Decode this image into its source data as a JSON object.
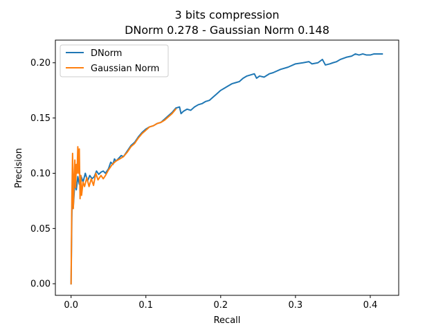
{
  "chart_data": {
    "type": "line",
    "title": [
      "3 bits compression",
      "DNorm 0.278 - Gaussian Norm 0.148"
    ],
    "xlabel": "Recall",
    "ylabel": "Precision",
    "xlim": [
      -0.021,
      0.438
    ],
    "ylim": [
      -0.0105,
      0.2205
    ],
    "x_ticks": [
      0.0,
      0.1,
      0.2,
      0.3,
      0.4
    ],
    "x_tick_labels": [
      "0.0",
      "0.1",
      "0.2",
      "0.3",
      "0.4"
    ],
    "y_ticks": [
      0.0,
      0.05,
      0.1,
      0.15,
      0.2
    ],
    "y_tick_labels": [
      "0.00",
      "0.05",
      "0.10",
      "0.15",
      "0.20"
    ],
    "grid": false,
    "legend_position": "top-left",
    "series": [
      {
        "name": "DNorm",
        "color": "#1f77b4",
        "points": [
          [
            0.0,
            0.0
          ],
          [
            0.001,
            0.06
          ],
          [
            0.002,
            0.1
          ],
          [
            0.003,
            0.07
          ],
          [
            0.005,
            0.092
          ],
          [
            0.007,
            0.085
          ],
          [
            0.009,
            0.097
          ],
          [
            0.011,
            0.09
          ],
          [
            0.013,
            0.098
          ],
          [
            0.016,
            0.092
          ],
          [
            0.019,
            0.1
          ],
          [
            0.022,
            0.093
          ],
          [
            0.025,
            0.098
          ],
          [
            0.028,
            0.095
          ],
          [
            0.031,
            0.097
          ],
          [
            0.034,
            0.102
          ],
          [
            0.037,
            0.099
          ],
          [
            0.04,
            0.101
          ],
          [
            0.043,
            0.102
          ],
          [
            0.046,
            0.1
          ],
          [
            0.05,
            0.104
          ],
          [
            0.053,
            0.11
          ],
          [
            0.056,
            0.108
          ],
          [
            0.058,
            0.113
          ],
          [
            0.06,
            0.111
          ],
          [
            0.063,
            0.113
          ],
          [
            0.067,
            0.116
          ],
          [
            0.07,
            0.115
          ],
          [
            0.075,
            0.12
          ],
          [
            0.08,
            0.125
          ],
          [
            0.085,
            0.128
          ],
          [
            0.09,
            0.133
          ],
          [
            0.095,
            0.137
          ],
          [
            0.1,
            0.14
          ],
          [
            0.105,
            0.142
          ],
          [
            0.11,
            0.143
          ],
          [
            0.115,
            0.145
          ],
          [
            0.12,
            0.146
          ],
          [
            0.125,
            0.149
          ],
          [
            0.13,
            0.152
          ],
          [
            0.135,
            0.155
          ],
          [
            0.14,
            0.159
          ],
          [
            0.145,
            0.16
          ],
          [
            0.147,
            0.154
          ],
          [
            0.15,
            0.156
          ],
          [
            0.155,
            0.158
          ],
          [
            0.16,
            0.157
          ],
          [
            0.165,
            0.16
          ],
          [
            0.17,
            0.162
          ],
          [
            0.175,
            0.163
          ],
          [
            0.18,
            0.165
          ],
          [
            0.185,
            0.166
          ],
          [
            0.19,
            0.169
          ],
          [
            0.195,
            0.172
          ],
          [
            0.2,
            0.175
          ],
          [
            0.205,
            0.177
          ],
          [
            0.21,
            0.179
          ],
          [
            0.215,
            0.181
          ],
          [
            0.22,
            0.182
          ],
          [
            0.225,
            0.183
          ],
          [
            0.23,
            0.186
          ],
          [
            0.235,
            0.188
          ],
          [
            0.24,
            0.189
          ],
          [
            0.245,
            0.19
          ],
          [
            0.248,
            0.186
          ],
          [
            0.252,
            0.188
          ],
          [
            0.258,
            0.187
          ],
          [
            0.265,
            0.19
          ],
          [
            0.27,
            0.191
          ],
          [
            0.28,
            0.194
          ],
          [
            0.29,
            0.196
          ],
          [
            0.3,
            0.199
          ],
          [
            0.31,
            0.2
          ],
          [
            0.318,
            0.201
          ],
          [
            0.322,
            0.199
          ],
          [
            0.33,
            0.2
          ],
          [
            0.336,
            0.203
          ],
          [
            0.34,
            0.198
          ],
          [
            0.346,
            0.199
          ],
          [
            0.35,
            0.2
          ],
          [
            0.355,
            0.201
          ],
          [
            0.36,
            0.203
          ],
          [
            0.368,
            0.205
          ],
          [
            0.375,
            0.206
          ],
          [
            0.38,
            0.208
          ],
          [
            0.385,
            0.207
          ],
          [
            0.39,
            0.208
          ],
          [
            0.395,
            0.207
          ],
          [
            0.4,
            0.207
          ],
          [
            0.405,
            0.208
          ],
          [
            0.41,
            0.208
          ],
          [
            0.416,
            0.208
          ]
        ]
      },
      {
        "name": "Gaussian Norm",
        "color": "#ff7f0e",
        "points": [
          [
            0.0,
            0.0
          ],
          [
            0.001,
            0.075
          ],
          [
            0.002,
            0.118
          ],
          [
            0.003,
            0.068
          ],
          [
            0.004,
            0.095
          ],
          [
            0.005,
            0.112
          ],
          [
            0.006,
            0.087
          ],
          [
            0.007,
            0.108
          ],
          [
            0.008,
            0.1
          ],
          [
            0.009,
            0.124
          ],
          [
            0.01,
            0.1
          ],
          [
            0.011,
            0.122
          ],
          [
            0.012,
            0.077
          ],
          [
            0.013,
            0.098
          ],
          [
            0.014,
            0.08
          ],
          [
            0.016,
            0.092
          ],
          [
            0.018,
            0.088
          ],
          [
            0.021,
            0.096
          ],
          [
            0.024,
            0.088
          ],
          [
            0.027,
            0.095
          ],
          [
            0.03,
            0.089
          ],
          [
            0.033,
            0.1
          ],
          [
            0.036,
            0.094
          ],
          [
            0.04,
            0.098
          ],
          [
            0.043,
            0.095
          ],
          [
            0.046,
            0.098
          ],
          [
            0.05,
            0.103
          ],
          [
            0.055,
            0.108
          ],
          [
            0.06,
            0.111
          ],
          [
            0.065,
            0.113
          ],
          [
            0.07,
            0.115
          ],
          [
            0.075,
            0.119
          ],
          [
            0.08,
            0.124
          ],
          [
            0.085,
            0.127
          ],
          [
            0.09,
            0.132
          ],
          [
            0.095,
            0.136
          ],
          [
            0.1,
            0.139
          ],
          [
            0.105,
            0.142
          ],
          [
            0.11,
            0.143
          ],
          [
            0.115,
            0.145
          ],
          [
            0.12,
            0.146
          ],
          [
            0.125,
            0.148
          ],
          [
            0.13,
            0.151
          ],
          [
            0.135,
            0.154
          ],
          [
            0.14,
            0.158
          ]
        ]
      }
    ]
  }
}
